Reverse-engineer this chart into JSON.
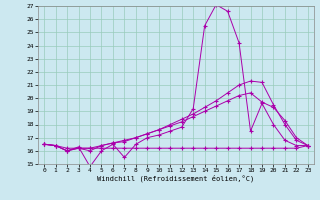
{
  "xlabel": "Windchill (Refroidissement éolien,°C)",
  "bg_color": "#cce8f0",
  "grid_color": "#99ccbb",
  "line_color": "#aa00aa",
  "xlim": [
    -0.5,
    23.5
  ],
  "ylim": [
    15,
    27
  ],
  "xticks": [
    0,
    1,
    2,
    3,
    4,
    5,
    6,
    7,
    8,
    9,
    10,
    11,
    12,
    13,
    14,
    15,
    16,
    17,
    18,
    19,
    20,
    21,
    22,
    23
  ],
  "yticks": [
    15,
    16,
    17,
    18,
    19,
    20,
    21,
    22,
    23,
    24,
    25,
    26,
    27
  ],
  "series": [
    [
      16.5,
      16.4,
      16.0,
      16.3,
      14.8,
      16.0,
      16.5,
      15.5,
      16.5,
      17.0,
      17.2,
      17.5,
      17.8,
      19.2,
      25.5,
      27.1,
      26.6,
      24.2,
      17.5,
      19.6,
      18.0,
      16.8,
      16.4,
      16.4
    ],
    [
      16.5,
      16.4,
      16.0,
      16.2,
      16.0,
      16.4,
      16.6,
      16.7,
      17.0,
      17.3,
      17.6,
      18.0,
      18.4,
      18.8,
      19.3,
      19.8,
      20.4,
      21.0,
      21.3,
      21.2,
      19.5,
      18.0,
      16.8,
      16.4
    ],
    [
      16.5,
      16.4,
      16.0,
      16.2,
      16.2,
      16.4,
      16.6,
      16.8,
      17.0,
      17.3,
      17.6,
      17.9,
      18.2,
      18.6,
      19.0,
      19.4,
      19.8,
      20.2,
      20.4,
      19.7,
      19.3,
      18.3,
      17.0,
      16.4
    ],
    [
      16.5,
      16.4,
      16.2,
      16.2,
      16.2,
      16.2,
      16.2,
      16.2,
      16.2,
      16.2,
      16.2,
      16.2,
      16.2,
      16.2,
      16.2,
      16.2,
      16.2,
      16.2,
      16.2,
      16.2,
      16.2,
      16.2,
      16.2,
      16.4
    ]
  ]
}
